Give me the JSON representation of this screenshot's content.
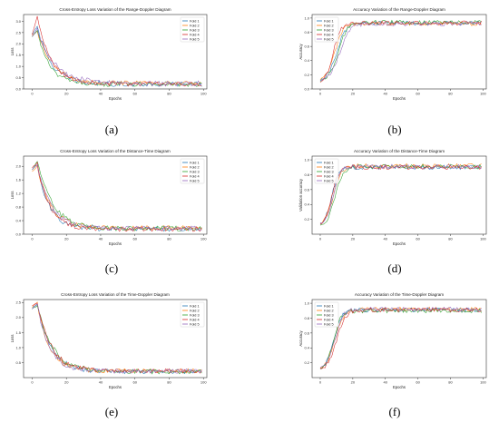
{
  "series_colors": [
    "#1f77b4",
    "#ff7f0e",
    "#2ca02c",
    "#d62728",
    "#9467bd"
  ],
  "chart_data": [
    {
      "type": "line",
      "panel_label": "(a)",
      "title": "Cross-Entropy Loss Variation of the Range-Doppler Diagram",
      "xlabel": "Epochs",
      "ylabel": "Loss",
      "xlim": [
        -5,
        102
      ],
      "ylim": [
        0.0,
        3.3
      ],
      "xticks": [
        0,
        20,
        40,
        60,
        80,
        100
      ],
      "yticks": [
        0.0,
        0.5,
        1.0,
        1.5,
        2.0,
        2.5,
        3.0
      ],
      "ytick_labels": [
        "0.0",
        "0.5",
        "1.0",
        "1.5",
        "2.0",
        "2.5",
        "3.0"
      ],
      "legend": "top-right",
      "epochs": 100,
      "series": [
        {
          "name": "Fold 1",
          "shape": "loss",
          "start": 2.4,
          "peak": 2.8,
          "floor": 0.22,
          "tau": 8,
          "noise": 0.12
        },
        {
          "name": "Fold 2",
          "shape": "loss",
          "start": 2.35,
          "peak": 2.55,
          "floor": 0.25,
          "tau": 9,
          "noise": 0.1
        },
        {
          "name": "Fold 3",
          "shape": "loss",
          "start": 2.3,
          "peak": 2.6,
          "floor": 0.2,
          "tau": 7,
          "noise": 0.1
        },
        {
          "name": "Fold 4",
          "shape": "loss",
          "start": 2.4,
          "peak": 3.2,
          "floor": 0.22,
          "tau": 8,
          "noise": 0.1
        },
        {
          "name": "Fold 5",
          "shape": "loss",
          "start": 2.3,
          "peak": 2.7,
          "floor": 0.24,
          "tau": 10,
          "noise": 0.12
        }
      ]
    },
    {
      "type": "line",
      "panel_label": "(b)",
      "title": "Accuracy Variation of the Range-Doppler Diagram",
      "xlabel": "Epochs",
      "ylabel": "Accuracy",
      "xlim": [
        -5,
        102
      ],
      "ylim": [
        0.0,
        1.05
      ],
      "xticks": [
        0,
        20,
        40,
        60,
        80,
        100
      ],
      "yticks": [
        0.0,
        0.2,
        0.4,
        0.6,
        0.8,
        1.0
      ],
      "ytick_labels": [
        "0.0",
        "0.2",
        "0.4",
        "0.6",
        "0.8",
        "1.0"
      ],
      "legend": "top-left",
      "epochs": 100,
      "series": [
        {
          "name": "Fold 1",
          "shape": "acc",
          "start": 0.1,
          "top": 0.93,
          "mid": 10,
          "k": 0.35,
          "noise": 0.03
        },
        {
          "name": "Fold 2",
          "shape": "acc",
          "start": 0.12,
          "top": 0.92,
          "mid": 9,
          "k": 0.4,
          "noise": 0.03
        },
        {
          "name": "Fold 3",
          "shape": "acc",
          "start": 0.1,
          "top": 0.94,
          "mid": 11,
          "k": 0.35,
          "noise": 0.03
        },
        {
          "name": "Fold 4",
          "shape": "acc",
          "start": 0.08,
          "top": 0.93,
          "mid": 8,
          "k": 0.45,
          "noise": 0.03
        },
        {
          "name": "Fold 5",
          "shape": "acc",
          "start": 0.11,
          "top": 0.92,
          "mid": 12,
          "k": 0.33,
          "noise": 0.03
        }
      ]
    },
    {
      "type": "line",
      "panel_label": "(c)",
      "title": "Cross-Entropy Loss Variation of the Distance-Time Diagram",
      "xlabel": "Epochs",
      "ylabel": "Loss",
      "xlim": [
        -5,
        102
      ],
      "ylim": [
        0.0,
        2.3
      ],
      "xticks": [
        0,
        20,
        40,
        60,
        80,
        100
      ],
      "yticks": [
        0.0,
        0.4,
        0.8,
        1.2,
        1.6,
        2.0
      ],
      "ytick_labels": [
        "0.0",
        "0.4",
        "0.8",
        "1.2",
        "1.6",
        "2.0"
      ],
      "legend": "top-right",
      "epochs": 100,
      "series": [
        {
          "name": "Fold 1",
          "shape": "loss",
          "start": 1.9,
          "peak": 2.05,
          "floor": 0.15,
          "tau": 7,
          "noise": 0.07
        },
        {
          "name": "Fold 2",
          "shape": "loss",
          "start": 1.85,
          "peak": 2.0,
          "floor": 0.18,
          "tau": 8,
          "noise": 0.07
        },
        {
          "name": "Fold 3",
          "shape": "loss",
          "start": 1.9,
          "peak": 2.15,
          "floor": 0.16,
          "tau": 9,
          "noise": 0.08
        },
        {
          "name": "Fold 4",
          "shape": "loss",
          "start": 1.95,
          "peak": 2.1,
          "floor": 0.15,
          "tau": 7,
          "noise": 0.07
        },
        {
          "name": "Fold 5",
          "shape": "loss",
          "start": 1.9,
          "peak": 2.05,
          "floor": 0.17,
          "tau": 8,
          "noise": 0.07
        }
      ]
    },
    {
      "type": "line",
      "panel_label": "(d)",
      "title": "Accuracy Variation of the Distance-Time Diagram",
      "xlabel": "Epochs",
      "ylabel": "Validation accuracy",
      "xlim": [
        -5,
        102
      ],
      "ylim": [
        0.0,
        1.05
      ],
      "xticks": [
        0,
        20,
        40,
        60,
        80,
        100
      ],
      "yticks": [
        0.2,
        0.4,
        0.6,
        0.8,
        1.0
      ],
      "ytick_labels": [
        "0.2",
        "0.4",
        "0.6",
        "0.8",
        "1.0"
      ],
      "legend": "top-left",
      "epochs": 100,
      "series": [
        {
          "name": "Fold 1",
          "shape": "acc",
          "start": 0.1,
          "top": 0.9,
          "mid": 7,
          "k": 0.45,
          "noise": 0.03
        },
        {
          "name": "Fold 2",
          "shape": "acc",
          "start": 0.11,
          "top": 0.92,
          "mid": 8,
          "k": 0.4,
          "noise": 0.03
        },
        {
          "name": "Fold 3",
          "shape": "acc",
          "start": 0.09,
          "top": 0.91,
          "mid": 9,
          "k": 0.4,
          "noise": 0.03
        },
        {
          "name": "Fold 4",
          "shape": "acc",
          "start": 0.1,
          "top": 0.9,
          "mid": 7,
          "k": 0.5,
          "noise": 0.03
        },
        {
          "name": "Fold 5",
          "shape": "acc",
          "start": 0.12,
          "top": 0.91,
          "mid": 8,
          "k": 0.45,
          "noise": 0.03
        }
      ]
    },
    {
      "type": "line",
      "panel_label": "(e)",
      "title": "Cross-Entropy Loss Variation of the Time-Doppler Diagram",
      "xlabel": "Epochs",
      "ylabel": "Loss",
      "xlim": [
        -5,
        102
      ],
      "ylim": [
        0.0,
        2.6
      ],
      "xticks": [
        0,
        20,
        40,
        60,
        80,
        100
      ],
      "yticks": [
        0.5,
        1.0,
        1.5,
        2.0,
        2.5
      ],
      "ytick_labels": [
        "0.5",
        "1.0",
        "1.5",
        "2.0",
        "2.5"
      ],
      "legend": "top-right",
      "epochs": 100,
      "series": [
        {
          "name": "Fold 1",
          "shape": "loss",
          "start": 2.3,
          "peak": 2.45,
          "floor": 0.2,
          "tau": 8,
          "noise": 0.08
        },
        {
          "name": "Fold 2",
          "shape": "loss",
          "start": 2.35,
          "peak": 2.5,
          "floor": 0.22,
          "tau": 7,
          "noise": 0.08
        },
        {
          "name": "Fold 3",
          "shape": "loss",
          "start": 2.3,
          "peak": 2.4,
          "floor": 0.2,
          "tau": 9,
          "noise": 0.08
        },
        {
          "name": "Fold 4",
          "shape": "loss",
          "start": 2.4,
          "peak": 2.5,
          "floor": 0.22,
          "tau": 8,
          "noise": 0.08
        },
        {
          "name": "Fold 5",
          "shape": "loss",
          "start": 2.3,
          "peak": 2.45,
          "floor": 0.21,
          "tau": 7,
          "noise": 0.08
        }
      ]
    },
    {
      "type": "line",
      "panel_label": "(f)",
      "title": "Accuracy Variation of the Time-Doppler Diagram",
      "xlabel": "Epochs",
      "ylabel": "Accuracy",
      "xlim": [
        -5,
        102
      ],
      "ylim": [
        0.0,
        1.05
      ],
      "xticks": [
        0,
        20,
        40,
        60,
        80,
        100
      ],
      "yticks": [
        0.2,
        0.4,
        0.6,
        0.8,
        1.0
      ],
      "ytick_labels": [
        "0.2",
        "0.4",
        "0.6",
        "0.8",
        "1.0"
      ],
      "legend": "top-left",
      "epochs": 100,
      "series": [
        {
          "name": "Fold 1",
          "shape": "acc",
          "start": 0.08,
          "top": 0.91,
          "mid": 8,
          "k": 0.4,
          "noise": 0.03
        },
        {
          "name": "Fold 2",
          "shape": "acc",
          "start": 0.1,
          "top": 0.92,
          "mid": 9,
          "k": 0.38,
          "noise": 0.03
        },
        {
          "name": "Fold 3",
          "shape": "acc",
          "start": 0.09,
          "top": 0.9,
          "mid": 8,
          "k": 0.42,
          "noise": 0.03
        },
        {
          "name": "Fold 4",
          "shape": "acc",
          "start": 0.1,
          "top": 0.91,
          "mid": 10,
          "k": 0.36,
          "noise": 0.03
        },
        {
          "name": "Fold 5",
          "shape": "acc",
          "start": 0.11,
          "top": 0.92,
          "mid": 9,
          "k": 0.4,
          "noise": 0.03
        }
      ]
    }
  ]
}
